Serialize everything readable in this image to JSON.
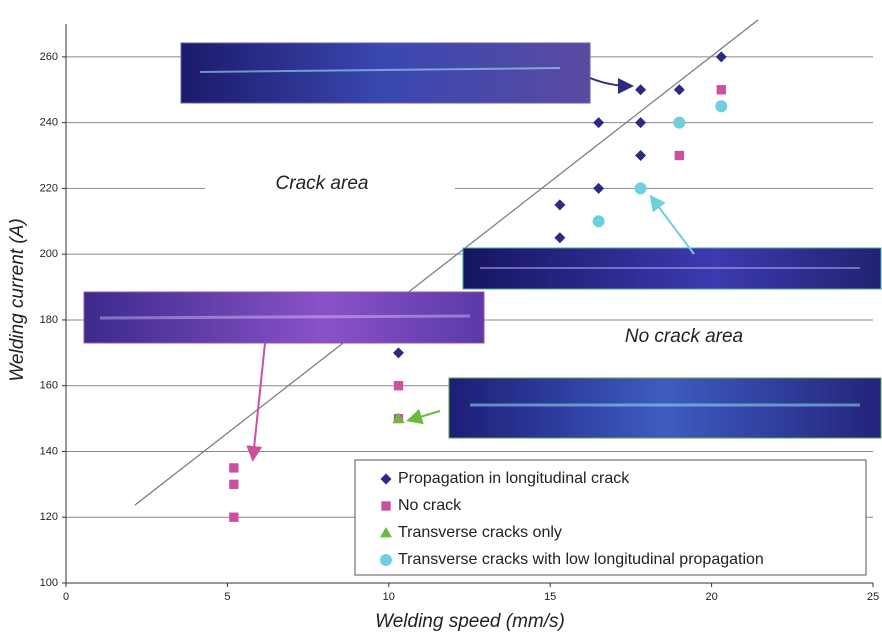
{
  "chart_data": {
    "type": "scatter",
    "x_label": "Welding speed (mm/s)",
    "y_label": "Welding current (A)",
    "xlim": [
      0,
      25
    ],
    "ylim": [
      100,
      270
    ],
    "xticks": [
      0,
      5,
      10,
      15,
      20,
      25
    ],
    "yticks": [
      100,
      120,
      140,
      160,
      180,
      200,
      220,
      240,
      260
    ],
    "grid": true,
    "annotations": [
      "Crack area",
      "No crack area"
    ],
    "series": [
      {
        "name": "Propagation in longitudinal crack",
        "color": "#2b2b86",
        "marker": "diamond",
        "x": [
          20.3,
          17.8,
          19,
          16.5,
          17.8,
          17.8,
          16.5,
          15.3,
          15.3,
          10.3
        ],
        "values": [
          260,
          250,
          250,
          240,
          240,
          230,
          220,
          215,
          205,
          170
        ]
      },
      {
        "name": "No crack",
        "color": "#cc4fa0",
        "marker": "square",
        "x": [
          20.3,
          19,
          10.3,
          10.3,
          5.2,
          5.2,
          5.2
        ],
        "values": [
          250,
          230,
          160,
          150,
          135,
          130,
          120
        ]
      },
      {
        "name": "Transverse cracks only",
        "color": "#6dbb3a",
        "marker": "triangle",
        "x": [
          10.3
        ],
        "values": [
          150
        ]
      },
      {
        "name": "Transverse cracks with low longitudinal propagation",
        "color": "#6fcfdc",
        "marker": "circle",
        "x": [
          20.3,
          19,
          17.8,
          16.5
        ],
        "values": [
          245,
          240,
          220,
          210
        ]
      }
    ]
  }
}
